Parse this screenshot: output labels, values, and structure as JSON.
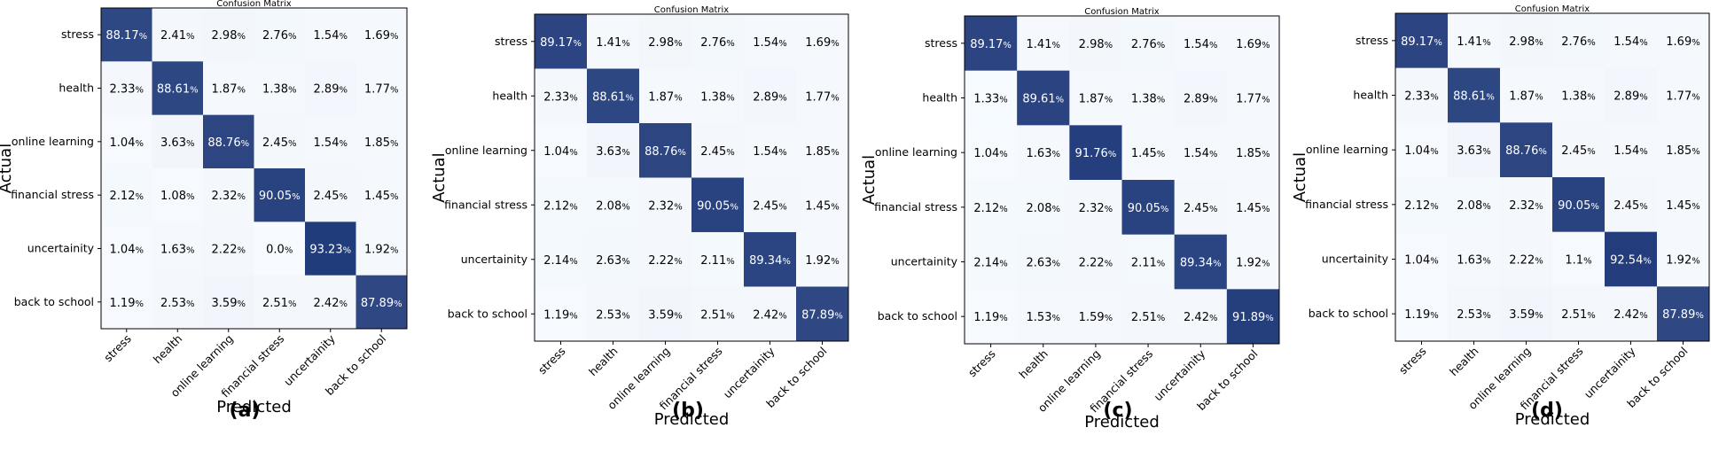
{
  "chart_data": [
    {
      "type": "heatmap",
      "title": "Confusion Matrix",
      "caption": "(a)",
      "xlabel": "Predicted",
      "ylabel": "Actual",
      "x_categories": [
        "stress",
        "health",
        "online learning",
        "financial stress",
        "uncertainity",
        "back to school"
      ],
      "y_categories": [
        "stress",
        "health",
        "online learning",
        "financial stress",
        "uncertainity",
        "back to school"
      ],
      "values": [
        [
          "88.17",
          "2.41",
          "2.98",
          "2.76",
          "1.54",
          "1.69"
        ],
        [
          "2.33",
          "88.61",
          "1.87",
          "1.38",
          "2.89",
          "1.77"
        ],
        [
          "1.04",
          "3.63",
          "88.76",
          "2.45",
          "1.54",
          "1.85"
        ],
        [
          "2.12",
          "1.08",
          "2.32",
          "90.05",
          "2.45",
          "1.45"
        ],
        [
          "1.04",
          "1.63",
          "2.22",
          "0.0",
          "93.23",
          "1.92"
        ],
        [
          "1.19",
          "2.53",
          "3.59",
          "2.51",
          "2.42",
          "87.89"
        ]
      ],
      "unit": "%"
    },
    {
      "type": "heatmap",
      "title": "Confusion Matrix",
      "caption": "(b)",
      "xlabel": "Predicted",
      "ylabel": "Actual",
      "x_categories": [
        "stress",
        "health",
        "online learning",
        "financial stress",
        "uncertainity",
        "back to school"
      ],
      "y_categories": [
        "stress",
        "health",
        "online learning",
        "financial stress",
        "uncertainity",
        "back to school"
      ],
      "values": [
        [
          "89.17",
          "1.41",
          "2.98",
          "2.76",
          "1.54",
          "1.69"
        ],
        [
          "2.33",
          "88.61",
          "1.87",
          "1.38",
          "2.89",
          "1.77"
        ],
        [
          "1.04",
          "3.63",
          "88.76",
          "2.45",
          "1.54",
          "1.85"
        ],
        [
          "2.12",
          "2.08",
          "2.32",
          "90.05",
          "2.45",
          "1.45"
        ],
        [
          "2.14",
          "2.63",
          "2.22",
          "2.11",
          "89.34",
          "1.92"
        ],
        [
          "1.19",
          "2.53",
          "3.59",
          "2.51",
          "2.42",
          "87.89"
        ]
      ],
      "unit": "%"
    },
    {
      "type": "heatmap",
      "title": "Confusion Matrix",
      "caption": "(c)",
      "xlabel": "Predicted",
      "ylabel": "Actual",
      "x_categories": [
        "stress",
        "health",
        "online learning",
        "financial stress",
        "uncertainity",
        "back to school"
      ],
      "y_categories": [
        "stress",
        "health",
        "online learning",
        "financial stress",
        "uncertainity",
        "back to school"
      ],
      "values": [
        [
          "89.17",
          "1.41",
          "2.98",
          "2.76",
          "1.54",
          "1.69"
        ],
        [
          "1.33",
          "89.61",
          "1.87",
          "1.38",
          "2.89",
          "1.77"
        ],
        [
          "1.04",
          "1.63",
          "91.76",
          "1.45",
          "1.54",
          "1.85"
        ],
        [
          "2.12",
          "2.08",
          "2.32",
          "90.05",
          "2.45",
          "1.45"
        ],
        [
          "2.14",
          "2.63",
          "2.22",
          "2.11",
          "89.34",
          "1.92"
        ],
        [
          "1.19",
          "1.53",
          "1.59",
          "2.51",
          "2.42",
          "91.89"
        ]
      ],
      "unit": "%"
    },
    {
      "type": "heatmap",
      "title": "Confusion Matrix",
      "caption": "(d)",
      "xlabel": "Predicted",
      "ylabel": "Actual",
      "x_categories": [
        "stress",
        "health",
        "online learning",
        "financial stress",
        "uncertainity",
        "back to school"
      ],
      "y_categories": [
        "stress",
        "health",
        "online learning",
        "financial stress",
        "uncertainity",
        "back to school"
      ],
      "values": [
        [
          "89.17",
          "1.41",
          "2.98",
          "2.76",
          "1.54",
          "1.69"
        ],
        [
          "2.33",
          "88.61",
          "1.87",
          "1.38",
          "2.89",
          "1.77"
        ],
        [
          "1.04",
          "3.63",
          "88.76",
          "2.45",
          "1.54",
          "1.85"
        ],
        [
          "2.12",
          "2.08",
          "2.32",
          "90.05",
          "2.45",
          "1.45"
        ],
        [
          "1.04",
          "1.63",
          "2.22",
          "1.1",
          "92.54",
          "1.92"
        ],
        [
          "1.19",
          "2.53",
          "3.59",
          "2.51",
          "2.42",
          "87.89"
        ]
      ],
      "unit": "%"
    }
  ],
  "colors": {
    "high": "#1f3a7a",
    "low": "#f7fbff",
    "text_dark": "#000000",
    "text_light": "#ffffff",
    "frame": "#000000"
  }
}
